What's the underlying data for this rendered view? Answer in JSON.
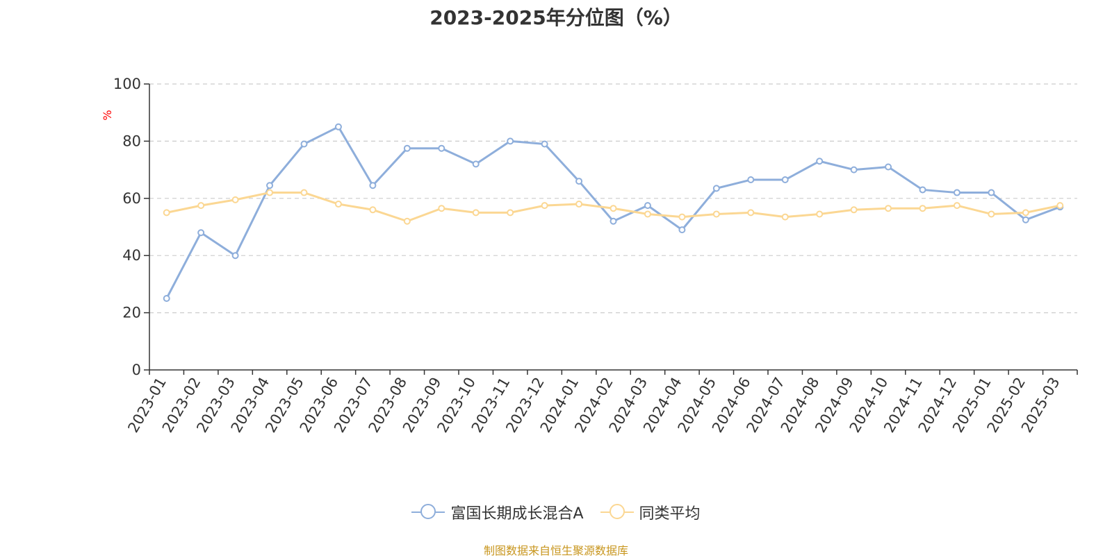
{
  "chart_data": {
    "type": "line",
    "title": "2023-2025年分位图（%）",
    "ylabel": "%",
    "xlabel": "",
    "ylim": [
      0,
      100
    ],
    "yticks": [
      0,
      20,
      40,
      60,
      80,
      100
    ],
    "grid": true,
    "legend_position": "bottom",
    "categories": [
      "2023-01",
      "2023-02",
      "2023-03",
      "2023-04",
      "2023-05",
      "2023-06",
      "2023-07",
      "2023-08",
      "2023-09",
      "2023-10",
      "2023-11",
      "2023-12",
      "2024-01",
      "2024-02",
      "2024-03",
      "2024-04",
      "2024-05",
      "2024-06",
      "2024-07",
      "2024-08",
      "2024-09",
      "2024-10",
      "2024-11",
      "2024-12",
      "2025-01",
      "2025-02",
      "2025-03"
    ],
    "series": [
      {
        "name": "富国长期成长混合A",
        "color": "#8eaedb",
        "values": [
          25,
          48,
          40,
          64.5,
          79,
          85,
          64.5,
          77.5,
          77.5,
          72,
          80,
          79,
          66,
          52,
          57.5,
          49,
          63.5,
          66.5,
          66.5,
          73,
          70,
          71,
          63,
          62,
          62,
          52.5,
          57
        ]
      },
      {
        "name": "同类平均",
        "color": "#fbd793",
        "values": [
          55,
          57.5,
          59.5,
          62,
          62,
          58,
          56,
          52,
          56.5,
          55,
          55,
          57.5,
          58,
          56.5,
          54.5,
          53.5,
          54.5,
          55,
          53.5,
          54.5,
          56,
          56.5,
          56.5,
          57.5,
          54.5,
          55,
          57.5
        ]
      }
    ]
  },
  "colors": {
    "axis": "#333333",
    "grid": "#cccccc",
    "ylabel": "#ff0000",
    "source": "#c8961e"
  },
  "source_text": "制图数据来自恒生聚源数据库"
}
